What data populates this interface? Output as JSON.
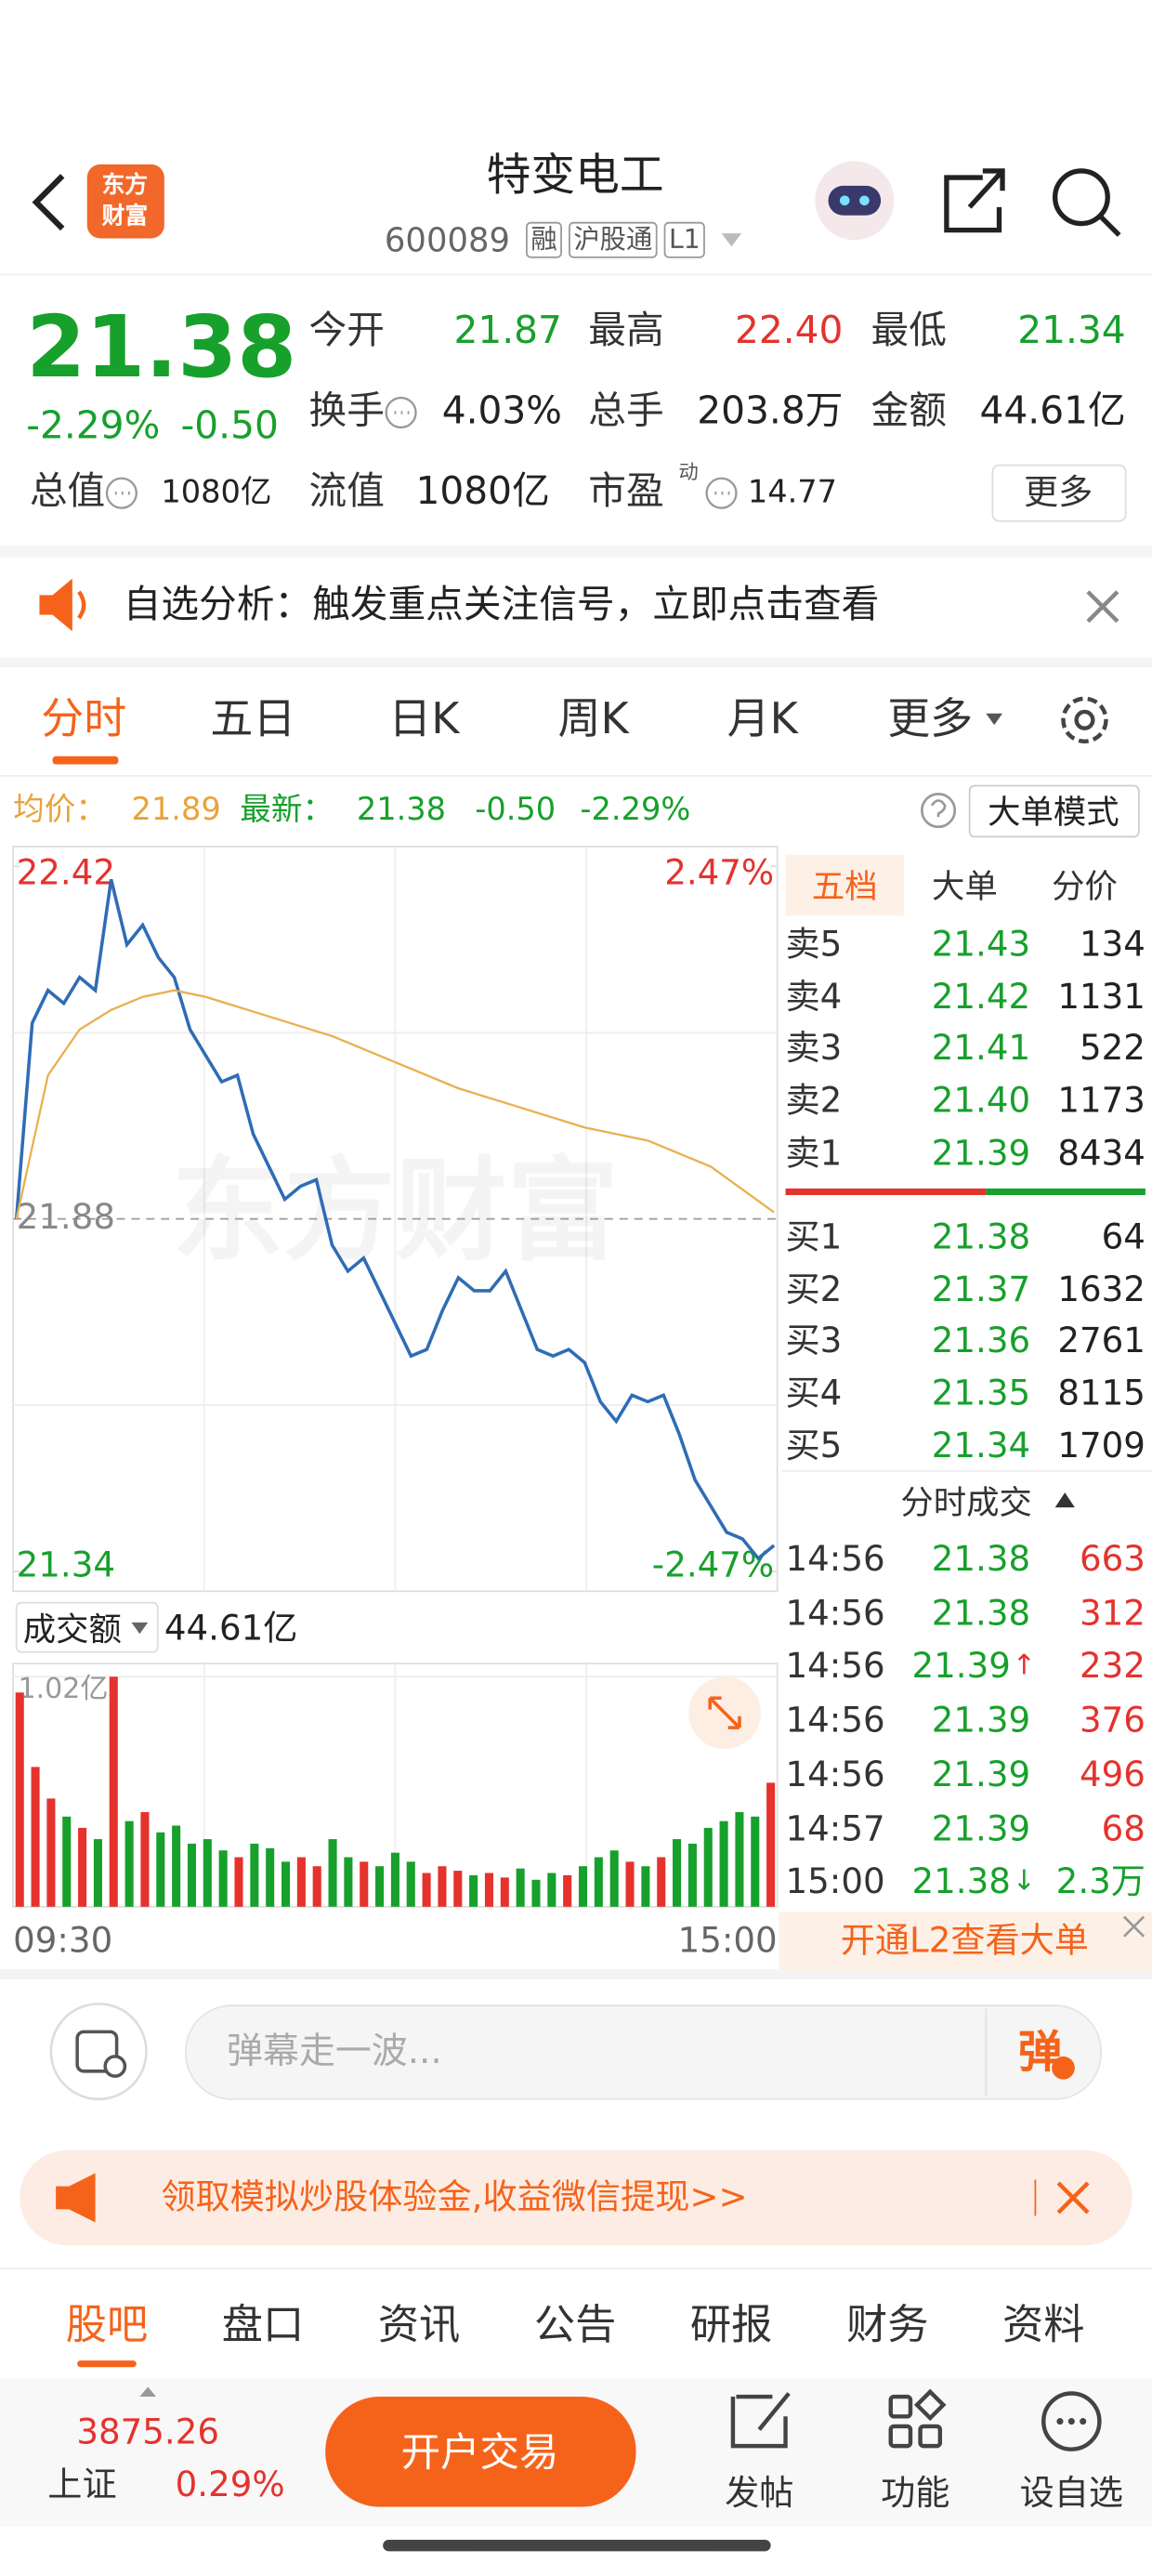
{
  "header": {
    "logo": [
      "东方",
      "财富"
    ],
    "title": "特变电工",
    "code": "600089",
    "tags": [
      "融",
      "沪股通",
      "L1"
    ]
  },
  "quote": {
    "price": "21.38",
    "change_pct": "-2.29%",
    "change": "-0.50",
    "color": "#17a02c",
    "fields": [
      {
        "label": "今开",
        "value": "21.87",
        "color": "#17a02c"
      },
      {
        "label": "最高",
        "value": "22.40",
        "color": "#e5322d"
      },
      {
        "label": "最低",
        "value": "21.34",
        "color": "#17a02c"
      },
      {
        "label": "换手",
        "value": "4.03%",
        "color": "#222222"
      },
      {
        "label": "总手",
        "value": "203.8万",
        "color": "#222222"
      },
      {
        "label": "金额",
        "value": "44.61亿",
        "color": "#222222"
      },
      {
        "label": "总值",
        "value": "1080亿",
        "color": "#222222"
      },
      {
        "label": "流值",
        "value": "1080亿",
        "color": "#222222"
      },
      {
        "label": "市盈",
        "sup": "动",
        "value": "14.77",
        "color": "#222222"
      }
    ],
    "more": "更多"
  },
  "notice": {
    "text": "自选分析：触发重点关注信号，立即点击查看"
  },
  "tabs": {
    "items": [
      "分时",
      "五日",
      "日K",
      "周K",
      "月K",
      "更多"
    ],
    "active": 0
  },
  "summary": {
    "avg_label": "均价：",
    "avg": "21.89",
    "last_label": "最新：",
    "last": "21.38",
    "change": "-0.50",
    "pct": "-2.29%",
    "mode": "大单模式"
  },
  "chart_data": [
    {
      "type": "line",
      "watermark": "东方财富",
      "xlim": [
        0,
        240
      ],
      "ylim": [
        21.34,
        22.42
      ],
      "yticks": [
        22.42,
        21.88,
        21.34
      ],
      "y2lim": [
        -2.47,
        2.47
      ],
      "y2ticks": [
        {
          "value": 2.47,
          "label": "2.47%"
        },
        {
          "value": -2.47,
          "label": "-2.47%"
        }
      ],
      "series": [
        {
          "color": "#2f6cb5",
          "x": [
            0,
            5,
            10,
            15,
            20,
            25,
            30,
            35,
            40,
            45,
            50,
            55,
            60,
            65,
            70,
            75,
            80,
            85,
            90,
            95,
            100,
            105,
            110,
            115,
            120,
            125,
            130,
            135,
            140,
            145,
            150,
            155,
            160,
            165,
            170,
            175,
            180,
            185,
            190,
            195,
            200,
            205,
            210,
            215,
            220,
            225,
            230,
            235,
            240
          ],
          "values": [
            21.88,
            22.18,
            22.23,
            22.21,
            22.25,
            22.23,
            22.4,
            22.3,
            22.33,
            22.28,
            22.25,
            22.17,
            22.13,
            22.09,
            22.1,
            22.01,
            21.96,
            21.91,
            21.93,
            21.94,
            21.84,
            21.8,
            21.82,
            21.77,
            21.72,
            21.67,
            21.68,
            21.74,
            21.79,
            21.77,
            21.77,
            21.8,
            21.74,
            21.68,
            21.67,
            21.68,
            21.66,
            21.6,
            21.57,
            21.61,
            21.6,
            21.61,
            21.55,
            21.48,
            21.44,
            21.4,
            21.39,
            21.36,
            21.38
          ]
        },
        {
          "color": "#e9b050",
          "x": [
            0,
            10,
            20,
            30,
            40,
            50,
            60,
            80,
            100,
            120,
            140,
            160,
            180,
            200,
            220,
            240
          ],
          "values": [
            21.88,
            22.1,
            22.17,
            22.2,
            22.22,
            22.23,
            22.22,
            22.19,
            22.16,
            22.12,
            22.08,
            22.05,
            22.02,
            22.0,
            21.96,
            21.89
          ]
        }
      ]
    },
    {
      "type": "bar",
      "title": "成交额",
      "total": "44.61亿",
      "xlim": [
        0,
        240
      ],
      "xticks": [
        {
          "value": 0,
          "label": "09:30"
        },
        {
          "value": 240,
          "label": "15:00"
        }
      ],
      "ylim": [
        0,
        1.02
      ],
      "yticks": [
        {
          "value": 1.02,
          "label": "1.02亿"
        }
      ],
      "up_color": "#e5322d",
      "down_color": "#17a02c",
      "x": [
        0,
        5,
        10,
        15,
        20,
        25,
        30,
        35,
        40,
        45,
        50,
        55,
        60,
        65,
        70,
        75,
        80,
        85,
        90,
        95,
        100,
        105,
        110,
        115,
        120,
        125,
        130,
        135,
        140,
        145,
        150,
        155,
        160,
        165,
        170,
        175,
        180,
        185,
        190,
        195,
        200,
        205,
        210,
        215,
        220,
        225,
        230,
        235,
        240
      ],
      "values": [
        0.95,
        0.62,
        0.48,
        0.4,
        0.35,
        0.3,
        1.02,
        0.38,
        0.42,
        0.33,
        0.36,
        0.28,
        0.3,
        0.25,
        0.22,
        0.28,
        0.26,
        0.2,
        0.22,
        0.18,
        0.3,
        0.22,
        0.2,
        0.18,
        0.24,
        0.2,
        0.15,
        0.18,
        0.16,
        0.14,
        0.15,
        0.13,
        0.17,
        0.12,
        0.15,
        0.14,
        0.18,
        0.22,
        0.25,
        0.2,
        0.18,
        0.22,
        0.3,
        0.28,
        0.35,
        0.38,
        0.42,
        0.4,
        0.55
      ]
    }
  ],
  "book": {
    "tabs": [
      "五档",
      "大单",
      "分价"
    ],
    "price_color": "#17a02c",
    "asks": [
      {
        "label": "卖5",
        "price": "21.43",
        "volume": "134"
      },
      {
        "label": "卖4",
        "price": "21.42",
        "volume": "1131"
      },
      {
        "label": "卖3",
        "price": "21.41",
        "volume": "522"
      },
      {
        "label": "卖2",
        "price": "21.40",
        "volume": "1173"
      },
      {
        "label": "卖1",
        "price": "21.39",
        "volume": "8434"
      }
    ],
    "bids": [
      {
        "label": "买1",
        "price": "21.38",
        "volume": "64"
      },
      {
        "label": "买2",
        "price": "21.37",
        "volume": "1632"
      },
      {
        "label": "买3",
        "price": "21.36",
        "volume": "2761"
      },
      {
        "label": "买4",
        "price": "21.35",
        "volume": "8115"
      },
      {
        "label": "买5",
        "price": "21.34",
        "volume": "1709"
      }
    ]
  },
  "trades": {
    "title": "分时成交",
    "price_color": "#17a02c",
    "rows": [
      {
        "time": "14:56",
        "price": "21.38",
        "volume": "663",
        "color": "#e5322d"
      },
      {
        "time": "14:56",
        "price": "21.38",
        "volume": "312",
        "color": "#e5322d"
      },
      {
        "time": "14:56",
        "price": "21.39",
        "arrow": "↑",
        "arrow_color": "#e5322d",
        "volume": "232",
        "color": "#e5322d"
      },
      {
        "time": "14:56",
        "price": "21.39",
        "volume": "376",
        "color": "#e5322d"
      },
      {
        "time": "14:56",
        "price": "21.39",
        "volume": "496",
        "color": "#e5322d"
      },
      {
        "time": "14:57",
        "price": "21.39",
        "volume": "68",
        "color": "#e5322d"
      },
      {
        "time": "15:00",
        "price": "21.38",
        "arrow": "↓",
        "arrow_color": "#17a02c",
        "volume": "2.3万",
        "color": "#17a02c"
      }
    ]
  },
  "l2": "开通L2查看大单",
  "danmaku": {
    "placeholder": "弹幕走一波...",
    "button": "弹"
  },
  "promo": "领取模拟炒股体验金,收益微信提现>>",
  "bottom_tabs": {
    "items": [
      "股吧",
      "盘口",
      "资讯",
      "公告",
      "研报",
      "财务",
      "资料"
    ],
    "active": 0
  },
  "footer": {
    "index_value": "3875.26",
    "index_name": "上证",
    "index_change": "0.29%",
    "trade_button": "开户交易",
    "actions": [
      "发帖",
      "功能",
      "设自选"
    ]
  }
}
